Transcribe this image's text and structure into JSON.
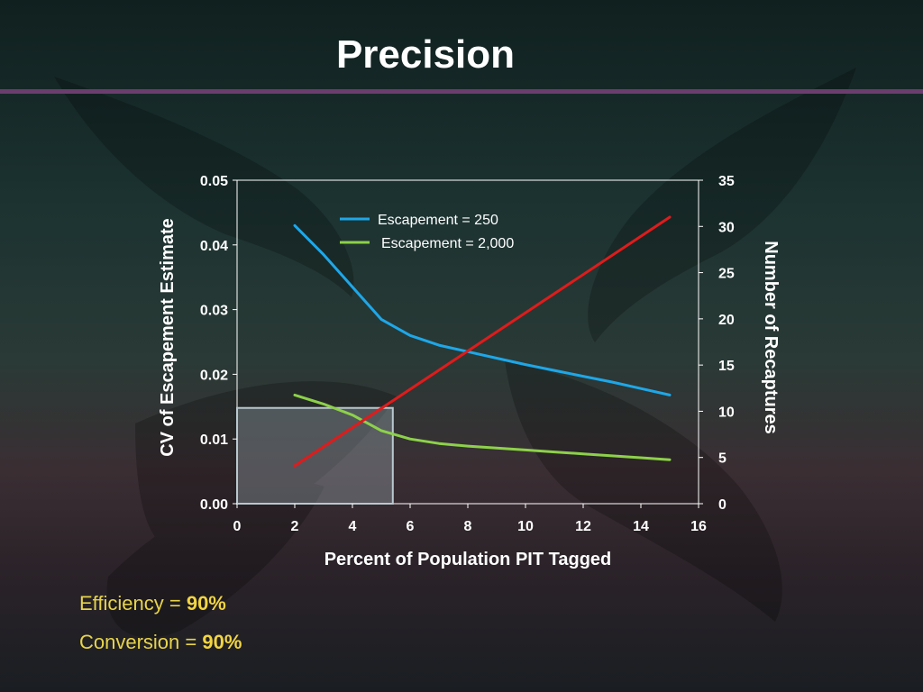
{
  "slide": {
    "title": "Precision",
    "stats": [
      {
        "label": "Efficiency = ",
        "value": "90%"
      },
      {
        "label": "Conversion = ",
        "value": "90%"
      }
    ]
  },
  "colors": {
    "escapement_250": "#1ea7e8",
    "escapement_2000": "#8dd14a",
    "recaptures": "#e01b1b",
    "title_rule": "#6b3d6e",
    "stat_text": "#e8d44a"
  },
  "chart_data": {
    "type": "line",
    "xlabel": "Percent of Population PIT Tagged",
    "ylabel": "CV of Escapement Estimate",
    "y2label": "Number of Recaptures",
    "xlim": [
      0,
      16
    ],
    "ylim": [
      0,
      0.05
    ],
    "y2lim": [
      0,
      35
    ],
    "x_ticks": [
      "0",
      "2",
      "4",
      "6",
      "8",
      "10",
      "12",
      "14",
      "16"
    ],
    "y_ticks": [
      "0.00",
      "0.01",
      "0.02",
      "0.03",
      "0.04",
      "0.05"
    ],
    "y2_ticks": [
      "0",
      "5",
      "10",
      "15",
      "20",
      "25",
      "30",
      "35"
    ],
    "legend_position": "top-center",
    "grid": false,
    "highlight_region": {
      "x": [
        0,
        5.4
      ],
      "y": [
        0,
        0.0148
      ]
    },
    "series": [
      {
        "name": "Escapement = 250",
        "axis": "left",
        "in_legend": true,
        "x": [
          2,
          3,
          4,
          5,
          6,
          7,
          8,
          9,
          10,
          11,
          12,
          13,
          14,
          15
        ],
        "y": [
          0.043,
          0.0385,
          0.0335,
          0.0285,
          0.026,
          0.0245,
          0.0235,
          0.0225,
          0.0215,
          0.0206,
          0.0197,
          0.0188,
          0.0178,
          0.0168
        ]
      },
      {
        "name": "Escapement = 2,000",
        "axis": "left",
        "in_legend": true,
        "x": [
          2,
          3,
          4,
          5,
          6,
          7,
          8,
          9,
          10,
          11,
          12,
          13,
          14,
          15
        ],
        "y": [
          0.0168,
          0.0154,
          0.0137,
          0.0113,
          0.01,
          0.0093,
          0.0089,
          0.0086,
          0.0083,
          0.008,
          0.0077,
          0.0074,
          0.0071,
          0.0068
        ]
      },
      {
        "axis": "right",
        "in_legend": false,
        "x": [
          2,
          15
        ],
        "y": [
          4.1,
          31
        ]
      }
    ]
  }
}
